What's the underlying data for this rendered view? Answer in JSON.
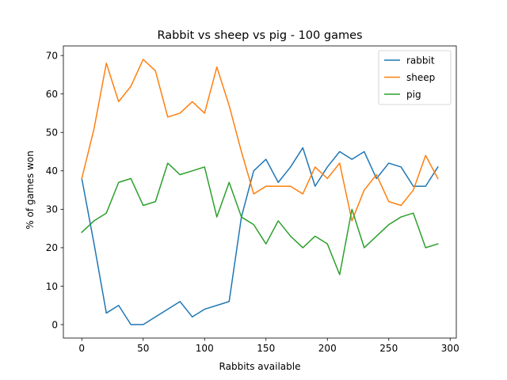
{
  "chart_data": {
    "type": "line",
    "title": "Rabbit vs sheep vs pig  - 100 games",
    "xlabel": "Rabbits available",
    "ylabel": "% of games won",
    "xlim": [
      -15,
      305
    ],
    "ylim": [
      -3.5,
      72.5
    ],
    "xticks": [
      0,
      50,
      100,
      150,
      200,
      250,
      300
    ],
    "yticks": [
      0,
      10,
      20,
      30,
      40,
      50,
      60,
      70
    ],
    "legend_position": "top-right",
    "x": [
      0,
      10,
      20,
      30,
      40,
      50,
      60,
      70,
      80,
      90,
      100,
      110,
      120,
      130,
      140,
      150,
      160,
      170,
      180,
      190,
      200,
      210,
      220,
      230,
      240,
      250,
      260,
      270,
      280,
      290
    ],
    "series": [
      {
        "name": "rabbit",
        "color": "#1f77b4",
        "values": [
          38,
          21,
          3,
          5,
          0,
          0,
          2,
          4,
          6,
          2,
          4,
          5,
          6,
          28,
          40,
          43,
          37,
          41,
          46,
          36,
          41,
          45,
          43,
          45,
          38,
          42,
          41,
          36,
          36,
          41
        ]
      },
      {
        "name": "sheep",
        "color": "#ff7f0e",
        "values": [
          38,
          51,
          68,
          58,
          62,
          69,
          66,
          54,
          55,
          58,
          55,
          67,
          57,
          45,
          34,
          36,
          36,
          36,
          34,
          41,
          38,
          42,
          27,
          35,
          39,
          32,
          31,
          35,
          44,
          38
        ]
      },
      {
        "name": "pig",
        "color": "#2ca02c",
        "values": [
          24,
          27,
          29,
          37,
          38,
          31,
          32,
          42,
          39,
          40,
          41,
          28,
          37,
          28,
          26,
          21,
          27,
          23,
          20,
          23,
          21,
          13,
          30,
          20,
          23,
          26,
          28,
          29,
          20,
          21
        ]
      }
    ]
  }
}
